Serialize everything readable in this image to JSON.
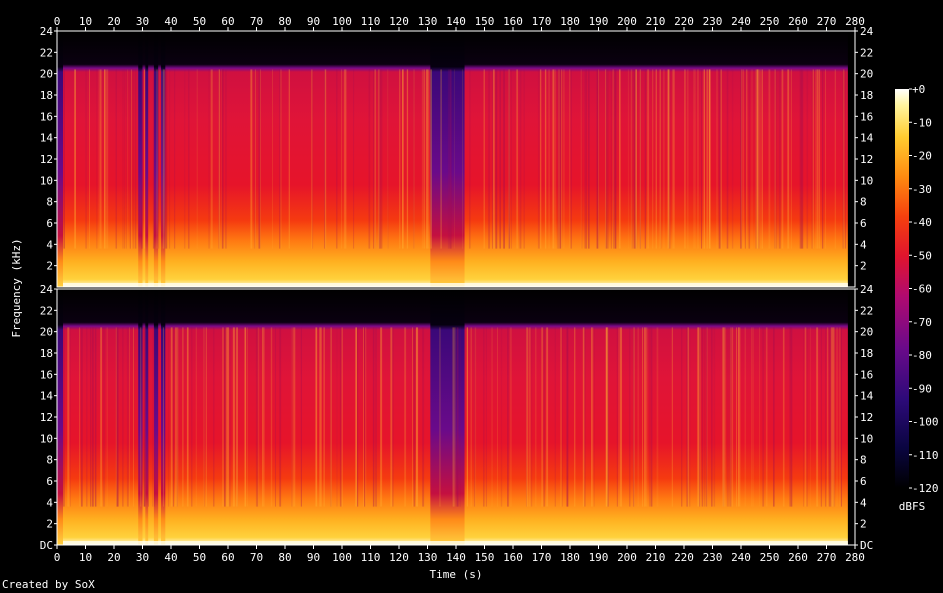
{
  "chart_data": {
    "type": "heatmap",
    "subtype": "spectrogram",
    "xlabel": "Time (s)",
    "ylabel": "Frequency (kHz)",
    "x_ticks": [
      0,
      10,
      20,
      30,
      40,
      50,
      60,
      70,
      80,
      90,
      100,
      110,
      120,
      130,
      140,
      150,
      160,
      170,
      180,
      190,
      200,
      210,
      220,
      230,
      240,
      250,
      260,
      270,
      280
    ],
    "xlim": [
      0,
      280
    ],
    "y_ticks": [
      "DC",
      "2",
      "4",
      "6",
      "8",
      "10",
      "12",
      "14",
      "16",
      "18",
      "20",
      "22",
      "24"
    ],
    "ylim": [
      0,
      24
    ],
    "panels": [
      {
        "channel": 1,
        "y_ticks_top_label": "24"
      },
      {
        "channel": 2,
        "y_ticks_top_label": "24"
      }
    ],
    "colorbar": {
      "label": "dBFS",
      "ticks": [
        "+0",
        "-10",
        "-20",
        "-30",
        "-40",
        "-50",
        "-60",
        "-70",
        "-80",
        "-90",
        "-100",
        "-110",
        "-120"
      ],
      "range": [
        -120,
        0
      ]
    },
    "content_cutoff_khz": 20.5,
    "duration_s": 277.5,
    "low_energy_segments_s": [
      [
        28.5,
        30
      ],
      [
        31,
        32
      ],
      [
        34,
        35.5
      ],
      [
        36.5,
        38
      ],
      [
        131,
        143
      ]
    ]
  },
  "footer": "Created by SoX"
}
